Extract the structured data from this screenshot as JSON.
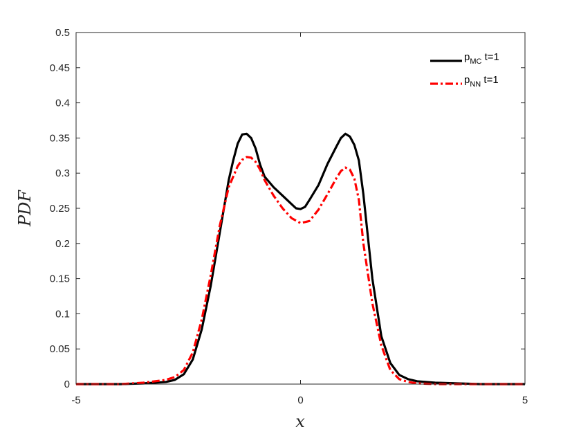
{
  "chart_data": {
    "type": "line",
    "xlabel": "x",
    "ylabel": "PDF",
    "xlim": [
      -5,
      5
    ],
    "ylim": [
      0,
      0.5
    ],
    "xticks": [
      "-5",
      "0",
      "5"
    ],
    "yticks": [
      "0",
      "0.05",
      "0.1",
      "0.15",
      "0.2",
      "0.25",
      "0.3",
      "0.35",
      "0.4",
      "0.45",
      "0.5"
    ],
    "grid": false,
    "legend_position": "top-right",
    "series": [
      {
        "name": "p_MC t=1",
        "legend_base": "p",
        "legend_sub": "MC",
        "legend_suffix": " t=1",
        "color": "#000000",
        "style": "solid",
        "x": [
          -5,
          -4,
          -3.5,
          -3,
          -2.8,
          -2.6,
          -2.4,
          -2.2,
          -2.0,
          -1.8,
          -1.6,
          -1.5,
          -1.4,
          -1.3,
          -1.2,
          -1.1,
          -1.0,
          -0.9,
          -0.8,
          -0.6,
          -0.4,
          -0.2,
          -0.1,
          0,
          0.1,
          0.2,
          0.4,
          0.6,
          0.8,
          0.9,
          1.0,
          1.1,
          1.2,
          1.3,
          1.4,
          1.5,
          1.6,
          1.8,
          2.0,
          2.2,
          2.4,
          2.6,
          2.8,
          3.0,
          3.5,
          4.0,
          5.0
        ],
        "y": [
          0,
          0,
          0.001,
          0.003,
          0.006,
          0.014,
          0.035,
          0.078,
          0.14,
          0.215,
          0.29,
          0.318,
          0.342,
          0.355,
          0.356,
          0.35,
          0.335,
          0.312,
          0.295,
          0.28,
          0.268,
          0.256,
          0.25,
          0.249,
          0.252,
          0.262,
          0.283,
          0.313,
          0.338,
          0.35,
          0.356,
          0.352,
          0.34,
          0.318,
          0.27,
          0.21,
          0.15,
          0.068,
          0.03,
          0.013,
          0.007,
          0.004,
          0.003,
          0.002,
          0.001,
          0,
          0
        ]
      },
      {
        "name": "p_NN t=1",
        "legend_base": "p",
        "legend_sub": "NN",
        "legend_suffix": " t=1",
        "color": "#ff0000",
        "style": "dashdot",
        "x": [
          -5,
          -4,
          -3.5,
          -3,
          -2.8,
          -2.6,
          -2.4,
          -2.2,
          -2.0,
          -1.8,
          -1.6,
          -1.4,
          -1.3,
          -1.2,
          -1.1,
          -1.0,
          -0.9,
          -0.8,
          -0.6,
          -0.4,
          -0.2,
          0,
          0.2,
          0.4,
          0.6,
          0.8,
          0.9,
          1.0,
          1.1,
          1.2,
          1.3,
          1.4,
          1.6,
          1.8,
          2.0,
          2.2,
          2.4,
          2.6,
          3.0,
          4.0,
          5.0
        ],
        "y": [
          0,
          0,
          0.002,
          0.006,
          0.01,
          0.02,
          0.045,
          0.092,
          0.155,
          0.225,
          0.28,
          0.31,
          0.319,
          0.323,
          0.322,
          0.316,
          0.305,
          0.29,
          0.268,
          0.25,
          0.236,
          0.229,
          0.232,
          0.248,
          0.27,
          0.293,
          0.303,
          0.308,
          0.305,
          0.292,
          0.262,
          0.2,
          0.115,
          0.055,
          0.02,
          0.007,
          0.003,
          0.001,
          0,
          0,
          0
        ]
      }
    ]
  }
}
